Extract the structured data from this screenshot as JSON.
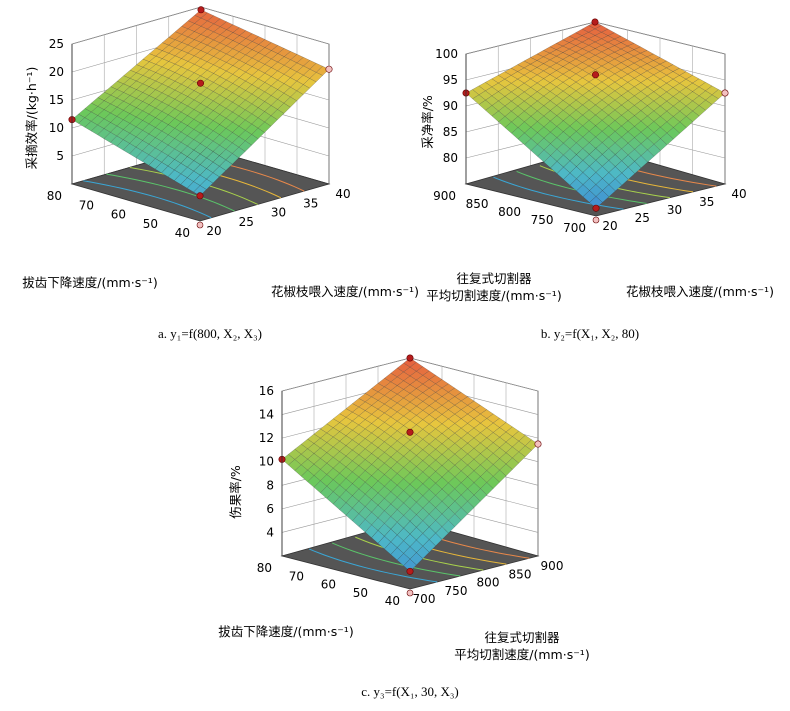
{
  "figure": {
    "captions": [
      "a.  y₁=f(800, X₂, X₃)",
      "b.  y₂=f(X₁, X₂, 80)",
      "c.  y₃=f(X₁, 30, X₃)"
    ]
  },
  "chart_data": [
    {
      "type": "surface",
      "caption": "a.  y₁=f(800, X₂, X₃)",
      "zlabel": "采摘效率/(kg·h⁻¹)",
      "xlabel": "花椒枝喂入速度/(mm·s⁻¹)",
      "ylabel": "拔齿下降速度/(mm·s⁻¹)",
      "xlabel_lines": [],
      "x_ticks": [
        "20",
        "25",
        "30",
        "35",
        "40"
      ],
      "y_ticks": [
        "40",
        "50",
        "60",
        "70",
        "80"
      ],
      "z_ticks": [
        "5",
        "10",
        "15",
        "20",
        "25"
      ],
      "xlim": [
        20,
        40
      ],
      "ylim": [
        40,
        80
      ],
      "zlim": [
        0,
        25
      ],
      "corner_values": {
        "front": 4.5,
        "right": 20.5,
        "left": 11.5,
        "back": 24.5
      },
      "center_value": 18,
      "grid": true,
      "contour_floor": true,
      "colormap": [
        "#3b7fd6",
        "#4db8c8",
        "#6cc85a",
        "#e7c63e",
        "#e55c3f"
      ]
    },
    {
      "type": "surface",
      "caption": "b.  y₂=f(X₁, X₂, 80)",
      "zlabel": "采净率/%",
      "xlabel": "花椒枝喂入速度/(mm·s⁻¹)",
      "ylabel": "",
      "ylabel_lines": [
        "往复式切割器",
        "平均切割速度/(mm·s⁻¹)"
      ],
      "x_ticks": [
        "20",
        "25",
        "30",
        "35",
        "40"
      ],
      "y_ticks": [
        "700",
        "750",
        "800",
        "850",
        "900"
      ],
      "z_ticks": [
        "80",
        "85",
        "90",
        "95",
        "100"
      ],
      "xlim": [
        20,
        40
      ],
      "ylim": [
        700,
        900
      ],
      "zlim": [
        75,
        100
      ],
      "corner_values": {
        "front": 76.5,
        "right": 92.5,
        "left": 92.5,
        "back": 100
      },
      "center_value": 96,
      "grid": true,
      "contour_floor": true,
      "colormap": [
        "#3b7fd6",
        "#4db8c8",
        "#6cc85a",
        "#e7c63e",
        "#e55c3f"
      ]
    },
    {
      "type": "surface",
      "caption": "c.  y₃=f(X₁, 30, X₃)",
      "zlabel": "伤果率/%",
      "xlabel": "",
      "xlabel_lines": [
        "往复式切割器",
        "平均切割速度/(mm·s⁻¹)"
      ],
      "ylabel": "拔齿下降速度/(mm·s⁻¹)",
      "x_ticks": [
        "700",
        "750",
        "800",
        "850",
        "900"
      ],
      "y_ticks": [
        "40",
        "50",
        "60",
        "70",
        "80"
      ],
      "z_ticks": [
        "4",
        "6",
        "8",
        "10",
        "12",
        "14",
        "16"
      ],
      "xlim": [
        700,
        900
      ],
      "ylim": [
        40,
        80
      ],
      "zlim": [
        2,
        16
      ],
      "corner_values": {
        "front": 3.5,
        "right": 11.5,
        "left": 10.2,
        "back": 16
      },
      "center_value": 12.5,
      "grid": true,
      "contour_floor": true,
      "colormap": [
        "#3b7fd6",
        "#4db8c8",
        "#6cc85a",
        "#e7c63e",
        "#e55c3f"
      ]
    }
  ]
}
